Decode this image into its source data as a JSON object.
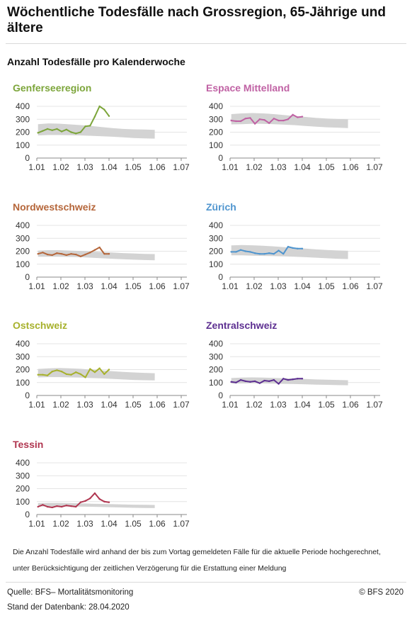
{
  "title": "Wöchentliche Todesfälle nach Grossregion, 65-Jährige und ältere",
  "subtitle": "Anzahl Todesfälle pro Kalenderwoche",
  "note": "Die Anzahl Todesfälle wird anhand der bis zum Vortag gemeldeten Fälle für die aktuelle Periode hochgerechnet, unter Berücksichtigung der zeitlichen Verzögerung für die Erstattung einer Meldung",
  "source": "Quelle: BFS– Mortalitätsmonitoring",
  "copyright": "© BFS 2020",
  "database_date": "Stand der Datenbank: 28.04.2020",
  "chart_data": [
    {
      "type": "line",
      "title": "Genferseeregion",
      "color": "#7ca53a",
      "ylim": [
        0,
        400
      ],
      "yticks": [
        0,
        100,
        200,
        300,
        400
      ],
      "xlim": [
        1,
        7
      ],
      "xticks": [
        "1.01",
        "1.02",
        "1.03",
        "1.04",
        "1.05",
        "1.06",
        "1.07"
      ],
      "band": {
        "lower": [
          175,
          178,
          178,
          177,
          175,
          172,
          168,
          165,
          160,
          155,
          152,
          150
        ],
        "upper": [
          262,
          268,
          266,
          260,
          255,
          248,
          240,
          232,
          225,
          222,
          220,
          218
        ]
      },
      "values": [
        195,
        210,
        225,
        215,
        225,
        205,
        220,
        200,
        190,
        200,
        245,
        250,
        320,
        400,
        375,
        325
      ]
    },
    {
      "type": "line",
      "title": "Espace Mittelland",
      "color": "#c062a4",
      "ylim": [
        0,
        400
      ],
      "yticks": [
        0,
        100,
        200,
        300,
        400
      ],
      "xlim": [
        1,
        7
      ],
      "xticks": [
        "1.01",
        "1.02",
        "1.03",
        "1.04",
        "1.05",
        "1.06",
        "1.07"
      ],
      "band": {
        "lower": [
          260,
          262,
          265,
          264,
          262,
          258,
          254,
          248,
          242,
          238,
          235,
          232
        ],
        "upper": [
          340,
          345,
          348,
          345,
          340,
          332,
          325,
          318,
          310,
          305,
          302,
          300
        ]
      },
      "values": [
        290,
        285,
        285,
        305,
        310,
        265,
        300,
        295,
        270,
        305,
        290,
        290,
        300,
        335,
        315,
        320
      ]
    },
    {
      "type": "line",
      "title": "Nordwestschweiz",
      "color": "#b5663a",
      "ylim": [
        0,
        400
      ],
      "yticks": [
        0,
        100,
        200,
        300,
        400
      ],
      "xlim": [
        1,
        7
      ],
      "xticks": [
        "1.01",
        "1.02",
        "1.03",
        "1.04",
        "1.05",
        "1.06",
        "1.07"
      ],
      "band": {
        "lower": [
          158,
          158,
          158,
          156,
          154,
          150,
          146,
          142,
          138,
          135,
          132,
          130
        ],
        "upper": [
          205,
          208,
          208,
          205,
          202,
          198,
          194,
          190,
          186,
          183,
          180,
          178
        ]
      },
      "values": [
        180,
        190,
        175,
        170,
        185,
        180,
        170,
        180,
        175,
        160,
        175,
        190,
        210,
        230,
        180,
        180
      ]
    },
    {
      "type": "line",
      "title": "Zürich",
      "color": "#4f95cf",
      "ylim": [
        0,
        400
      ],
      "yticks": [
        0,
        100,
        200,
        300,
        400
      ],
      "xlim": [
        1,
        7
      ],
      "xticks": [
        "1.01",
        "1.02",
        "1.03",
        "1.04",
        "1.05",
        "1.06",
        "1.07"
      ],
      "band": {
        "lower": [
          168,
          168,
          166,
          164,
          162,
          160,
          158,
          154,
          150,
          146,
          142,
          140
        ],
        "upper": [
          245,
          248,
          246,
          242,
          238,
          232,
          226,
          220,
          214,
          210,
          206,
          204
        ]
      },
      "values": [
        195,
        195,
        210,
        200,
        195,
        185,
        180,
        180,
        185,
        180,
        205,
        180,
        235,
        225,
        220,
        220
      ]
    },
    {
      "type": "line",
      "title": "Ostschweiz",
      "color": "#a7b12c",
      "ylim": [
        0,
        400
      ],
      "yticks": [
        0,
        100,
        200,
        300,
        400
      ],
      "xlim": [
        1,
        7
      ],
      "xticks": [
        "1.01",
        "1.02",
        "1.03",
        "1.04",
        "1.05",
        "1.06",
        "1.07"
      ],
      "band": {
        "lower": [
          140,
          142,
          142,
          140,
          138,
          135,
          132,
          128,
          124,
          120,
          118,
          116
        ],
        "upper": [
          205,
          210,
          212,
          210,
          206,
          200,
          194,
          188,
          182,
          178,
          175,
          172
        ]
      },
      "values": [
        160,
        160,
        155,
        185,
        195,
        185,
        165,
        160,
        180,
        165,
        140,
        205,
        180,
        210,
        165,
        200
      ]
    },
    {
      "type": "line",
      "title": "Zentralschweiz",
      "color": "#5d2f91",
      "ylim": [
        0,
        400
      ],
      "yticks": [
        0,
        100,
        200,
        300,
        400
      ],
      "xlim": [
        1,
        7
      ],
      "xticks": [
        "1.01",
        "1.02",
        "1.03",
        "1.04",
        "1.05",
        "1.06",
        "1.07"
      ],
      "band": {
        "lower": [
          92,
          93,
          94,
          93,
          92,
          90,
          88,
          86,
          84,
          82,
          80,
          79
        ],
        "upper": [
          135,
          138,
          140,
          138,
          136,
          133,
          130,
          127,
          124,
          122,
          120,
          118
        ]
      },
      "values": [
        105,
        100,
        120,
        110,
        105,
        110,
        95,
        115,
        110,
        120,
        90,
        130,
        120,
        125,
        130,
        130
      ]
    },
    {
      "type": "line",
      "title": "Tessin",
      "color": "#b03650",
      "ylim": [
        0,
        400
      ],
      "yticks": [
        0,
        100,
        200,
        300,
        400
      ],
      "xlim": [
        1,
        7
      ],
      "xticks": [
        "1.01",
        "1.02",
        "1.03",
        "1.04",
        "1.05",
        "1.06",
        "1.07"
      ],
      "band": {
        "lower": [
          62,
          63,
          63,
          62,
          61,
          60,
          58,
          56,
          54,
          52,
          51,
          50
        ],
        "upper": [
          88,
          90,
          90,
          88,
          86,
          84,
          82,
          80,
          78,
          76,
          75,
          74
        ]
      },
      "values": [
        60,
        75,
        60,
        55,
        65,
        60,
        70,
        65,
        60,
        95,
        105,
        125,
        165,
        120,
        100,
        95
      ]
    }
  ]
}
